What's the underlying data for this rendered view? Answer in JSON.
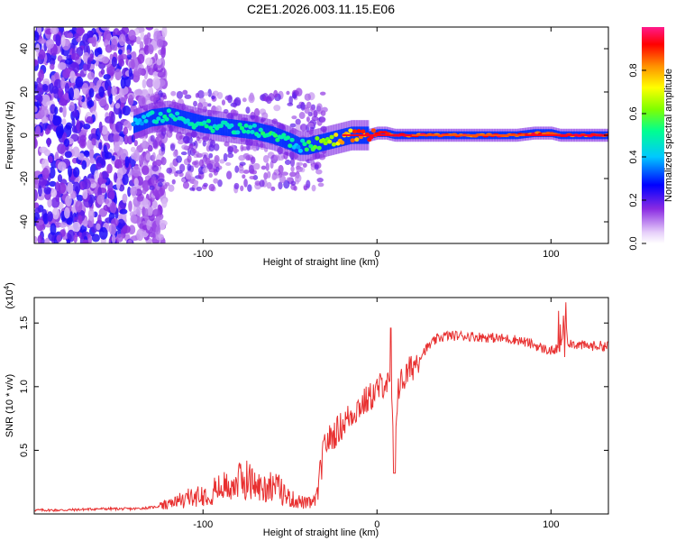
{
  "chart_data": [
    {
      "type": "heatmap",
      "title": "C2E1.2026.003.11.15.E06",
      "xlabel": "Height of straight line (km)",
      "ylabel": "Frequency (Hz)",
      "xlim": [
        -197,
        133
      ],
      "ylim": [
        -50,
        50
      ],
      "x_ticks": [
        -100,
        0,
        100
      ],
      "x_tick_labels": [
        "-100",
        "0",
        "100"
      ],
      "y_ticks": [
        -40,
        -20,
        0,
        20,
        40
      ],
      "y_tick_labels": [
        "-40",
        "-20",
        "0",
        "20",
        "40"
      ],
      "colorbar": {
        "label": "Normalized spectral amplitude",
        "range": [
          0,
          1
        ],
        "ticks": [
          0.0,
          0.2,
          0.4,
          0.6,
          0.8
        ],
        "tick_labels": [
          "0.0",
          "0.2",
          "0.4",
          "0.6",
          "0.8"
        ],
        "colors": [
          "#f2e6fb",
          "#8a2be2",
          "#0000ff",
          "#00c8ff",
          "#00ff80",
          "#80ff00",
          "#ffff00",
          "#ff8000",
          "#ff0000",
          "#ff1493"
        ]
      },
      "noise_region_x": [
        -197,
        -130
      ],
      "ridge": {
        "x": [
          -140,
          -130,
          -120,
          -110,
          -100,
          -90,
          -80,
          -70,
          -60,
          -50,
          -45,
          -40,
          -35,
          -30,
          -25,
          -20,
          -15,
          -10,
          -5,
          0,
          5,
          10,
          20,
          40,
          60,
          80,
          90,
          95,
          100,
          105,
          110,
          120,
          133
        ],
        "frequency": [
          5,
          8,
          9,
          7,
          5,
          4,
          3,
          2,
          0,
          -3,
          -5,
          -5,
          -4,
          -3,
          -2,
          -1,
          0,
          0,
          0,
          1,
          1,
          0,
          0,
          0,
          0,
          0,
          1,
          1,
          1,
          0,
          0,
          0,
          0
        ],
        "amplitude": [
          0.35,
          0.4,
          0.45,
          0.4,
          0.45,
          0.45,
          0.45,
          0.45,
          0.5,
          0.45,
          0.35,
          0.5,
          0.6,
          0.6,
          0.7,
          0.8,
          0.85,
          0.9,
          0.9,
          0.95,
          0.9,
          0.95,
          0.95,
          0.95,
          0.95,
          0.95,
          0.95,
          0.9,
          0.95,
          0.9,
          0.95,
          0.95,
          0.95
        ]
      }
    },
    {
      "type": "line",
      "xlabel": "Height of straight line (km)",
      "ylabel": "SNR (10 * v/v)",
      "y_scale_label": "(x10",
      "y_scale_exponent": "4",
      "y_scale_close": ")",
      "xlim": [
        -197,
        133
      ],
      "ylim": [
        0,
        1.7
      ],
      "x_ticks": [
        -100,
        0,
        100
      ],
      "x_tick_labels": [
        "-100",
        "0",
        "100"
      ],
      "y_ticks": [
        0.5,
        1.0,
        1.5
      ],
      "y_tick_labels": [
        "0.5",
        "1.0",
        "1.5"
      ],
      "line_color": "#e83030",
      "series": [
        {
          "name": "SNR",
          "x": [
            -197,
            -180,
            -160,
            -140,
            -130,
            -120,
            -110,
            -100,
            -90,
            -80,
            -75,
            -70,
            -65,
            -60,
            -55,
            -50,
            -45,
            -40,
            -35,
            -30,
            -25,
            -20,
            -15,
            -10,
            -5,
            0,
            5,
            8,
            10,
            12,
            15,
            20,
            25,
            30,
            35,
            40,
            50,
            60,
            70,
            80,
            90,
            95,
            100,
            105,
            108,
            110,
            115,
            120,
            125,
            133
          ],
          "y": [
            0.03,
            0.03,
            0.04,
            0.04,
            0.05,
            0.07,
            0.12,
            0.15,
            0.2,
            0.25,
            0.28,
            0.22,
            0.2,
            0.24,
            0.18,
            0.12,
            0.1,
            0.08,
            0.1,
            0.55,
            0.62,
            0.7,
            0.78,
            0.85,
            0.9,
            0.97,
            1.05,
            0.95,
            0.5,
            1.0,
            1.05,
            1.15,
            1.25,
            1.32,
            1.38,
            1.4,
            1.4,
            1.39,
            1.38,
            1.37,
            1.33,
            1.3,
            1.28,
            1.3,
            1.5,
            1.35,
            1.33,
            1.32,
            1.32,
            1.32
          ]
        }
      ]
    }
  ]
}
